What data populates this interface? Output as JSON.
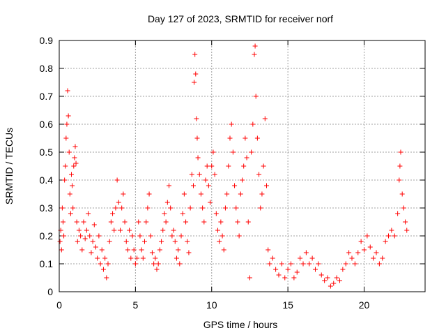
{
  "chart_data": {
    "type": "scatter",
    "title": "Day 127 of 2023, SRMTID for receiver norf",
    "xlabel": "GPS time / hours",
    "ylabel": "SRMTID / TECUs",
    "xlim": [
      0,
      24
    ],
    "ylim": [
      0,
      0.9
    ],
    "x_ticks": [
      0,
      5,
      10,
      15,
      20
    ],
    "y_ticks": [
      0,
      0.1,
      0.2,
      0.3,
      0.4,
      0.5,
      0.6,
      0.7,
      0.8,
      0.9
    ],
    "grid": true,
    "marker": "+",
    "color": "#ff0000",
    "series": [
      {
        "name": "norf",
        "points": [
          [
            0.05,
            0.18
          ],
          [
            0.1,
            0.22
          ],
          [
            0.15,
            0.15
          ],
          [
            0.2,
            0.3
          ],
          [
            0.25,
            0.25
          ],
          [
            0.3,
            0.2
          ],
          [
            0.35,
            0.4
          ],
          [
            0.4,
            0.45
          ],
          [
            0.45,
            0.55
          ],
          [
            0.5,
            0.6
          ],
          [
            0.55,
            0.72
          ],
          [
            0.6,
            0.63
          ],
          [
            0.65,
            0.5
          ],
          [
            0.7,
            0.35
          ],
          [
            0.75,
            0.28
          ],
          [
            0.8,
            0.42
          ],
          [
            0.85,
            0.38
          ],
          [
            0.9,
            0.3
          ],
          [
            0.95,
            0.45
          ],
          [
            1.0,
            0.48
          ],
          [
            1.05,
            0.52
          ],
          [
            1.1,
            0.46
          ],
          [
            1.15,
            0.25
          ],
          [
            1.2,
            0.18
          ],
          [
            1.3,
            0.22
          ],
          [
            1.4,
            0.2
          ],
          [
            1.5,
            0.15
          ],
          [
            1.6,
            0.25
          ],
          [
            1.7,
            0.19
          ],
          [
            1.8,
            0.22
          ],
          [
            1.9,
            0.28
          ],
          [
            2.0,
            0.2
          ],
          [
            2.1,
            0.14
          ],
          [
            2.2,
            0.18
          ],
          [
            2.3,
            0.24
          ],
          [
            2.4,
            0.16
          ],
          [
            2.5,
            0.12
          ],
          [
            2.6,
            0.2
          ],
          [
            2.7,
            0.1
          ],
          [
            2.8,
            0.15
          ],
          [
            2.9,
            0.08
          ],
          [
            3.0,
            0.12
          ],
          [
            3.1,
            0.05
          ],
          [
            3.2,
            0.1
          ],
          [
            3.3,
            0.18
          ],
          [
            3.4,
            0.25
          ],
          [
            3.5,
            0.28
          ],
          [
            3.6,
            0.22
          ],
          [
            3.7,
            0.3
          ],
          [
            3.8,
            0.4
          ],
          [
            3.9,
            0.32
          ],
          [
            4.0,
            0.22
          ],
          [
            4.1,
            0.3
          ],
          [
            4.2,
            0.35
          ],
          [
            4.3,
            0.25
          ],
          [
            4.4,
            0.18
          ],
          [
            4.5,
            0.15
          ],
          [
            4.6,
            0.22
          ],
          [
            4.7,
            0.12
          ],
          [
            4.8,
            0.2
          ],
          [
            4.9,
            0.15
          ],
          [
            5.0,
            0.1
          ],
          [
            5.1,
            0.12
          ],
          [
            5.2,
            0.25
          ],
          [
            5.3,
            0.2
          ],
          [
            5.4,
            0.15
          ],
          [
            5.5,
            0.12
          ],
          [
            5.6,
            0.18
          ],
          [
            5.7,
            0.25
          ],
          [
            5.8,
            0.3
          ],
          [
            5.9,
            0.35
          ],
          [
            6.0,
            0.2
          ],
          [
            6.1,
            0.14
          ],
          [
            6.2,
            0.1
          ],
          [
            6.3,
            0.12
          ],
          [
            6.4,
            0.08
          ],
          [
            6.5,
            0.1
          ],
          [
            6.6,
            0.15
          ],
          [
            6.7,
            0.18
          ],
          [
            6.8,
            0.22
          ],
          [
            6.9,
            0.28
          ],
          [
            7.0,
            0.25
          ],
          [
            7.1,
            0.32
          ],
          [
            7.2,
            0.38
          ],
          [
            7.3,
            0.3
          ],
          [
            7.4,
            0.2
          ],
          [
            7.5,
            0.22
          ],
          [
            7.6,
            0.18
          ],
          [
            7.7,
            0.12
          ],
          [
            7.8,
            0.15
          ],
          [
            7.9,
            0.1
          ],
          [
            8.0,
            0.2
          ],
          [
            8.1,
            0.28
          ],
          [
            8.2,
            0.35
          ],
          [
            8.3,
            0.25
          ],
          [
            8.4,
            0.18
          ],
          [
            8.5,
            0.14
          ],
          [
            8.6,
            0.3
          ],
          [
            8.7,
            0.42
          ],
          [
            8.8,
            0.38
          ],
          [
            8.85,
            0.75
          ],
          [
            8.9,
            0.85
          ],
          [
            8.95,
            0.78
          ],
          [
            9.0,
            0.62
          ],
          [
            9.05,
            0.55
          ],
          [
            9.1,
            0.48
          ],
          [
            9.2,
            0.42
          ],
          [
            9.3,
            0.35
          ],
          [
            9.4,
            0.3
          ],
          [
            9.5,
            0.25
          ],
          [
            9.6,
            0.4
          ],
          [
            9.7,
            0.45
          ],
          [
            9.8,
            0.38
          ],
          [
            9.9,
            0.32
          ],
          [
            10.0,
            0.45
          ],
          [
            10.1,
            0.5
          ],
          [
            10.2,
            0.42
          ],
          [
            10.3,
            0.28
          ],
          [
            10.4,
            0.22
          ],
          [
            10.5,
            0.18
          ],
          [
            10.6,
            0.25
          ],
          [
            10.7,
            0.2
          ],
          [
            10.8,
            0.15
          ],
          [
            10.9,
            0.3
          ],
          [
            11.0,
            0.35
          ],
          [
            11.1,
            0.45
          ],
          [
            11.2,
            0.55
          ],
          [
            11.3,
            0.6
          ],
          [
            11.4,
            0.5
          ],
          [
            11.5,
            0.38
          ],
          [
            11.6,
            0.3
          ],
          [
            11.7,
            0.25
          ],
          [
            11.8,
            0.2
          ],
          [
            11.9,
            0.35
          ],
          [
            12.0,
            0.4
          ],
          [
            12.1,
            0.45
          ],
          [
            12.2,
            0.55
          ],
          [
            12.3,
            0.48
          ],
          [
            12.4,
            0.25
          ],
          [
            12.5,
            0.05
          ],
          [
            12.6,
            0.5
          ],
          [
            12.7,
            0.6
          ],
          [
            12.8,
            0.85
          ],
          [
            12.85,
            0.88
          ],
          [
            12.9,
            0.7
          ],
          [
            13.0,
            0.55
          ],
          [
            13.1,
            0.42
          ],
          [
            13.2,
            0.3
          ],
          [
            13.3,
            0.35
          ],
          [
            13.4,
            0.45
          ],
          [
            13.5,
            0.62
          ],
          [
            13.6,
            0.38
          ],
          [
            13.7,
            0.15
          ],
          [
            13.8,
            0.1
          ],
          [
            14.0,
            0.12
          ],
          [
            14.2,
            0.08
          ],
          [
            14.4,
            0.06
          ],
          [
            14.6,
            0.1
          ],
          [
            14.8,
            0.05
          ],
          [
            15.0,
            0.08
          ],
          [
            15.2,
            0.1
          ],
          [
            15.4,
            0.05
          ],
          [
            15.6,
            0.07
          ],
          [
            15.8,
            0.12
          ],
          [
            16.0,
            0.1
          ],
          [
            16.2,
            0.14
          ],
          [
            16.4,
            0.1
          ],
          [
            16.6,
            0.12
          ],
          [
            16.8,
            0.08
          ],
          [
            17.0,
            0.1
          ],
          [
            17.2,
            0.06
          ],
          [
            17.4,
            0.04
          ],
          [
            17.6,
            0.05
          ],
          [
            17.8,
            0.02
          ],
          [
            18.0,
            0.03
          ],
          [
            18.2,
            0.05
          ],
          [
            18.4,
            0.04
          ],
          [
            18.6,
            0.08
          ],
          [
            18.8,
            0.1
          ],
          [
            19.0,
            0.14
          ],
          [
            19.2,
            0.12
          ],
          [
            19.4,
            0.1
          ],
          [
            19.6,
            0.14
          ],
          [
            19.8,
            0.18
          ],
          [
            20.0,
            0.15
          ],
          [
            20.2,
            0.2
          ],
          [
            20.4,
            0.16
          ],
          [
            20.6,
            0.12
          ],
          [
            20.8,
            0.14
          ],
          [
            21.0,
            0.1
          ],
          [
            21.2,
            0.12
          ],
          [
            21.4,
            0.18
          ],
          [
            21.6,
            0.2
          ],
          [
            21.8,
            0.22
          ],
          [
            22.0,
            0.2
          ],
          [
            22.2,
            0.28
          ],
          [
            22.3,
            0.4
          ],
          [
            22.35,
            0.45
          ],
          [
            22.4,
            0.5
          ],
          [
            22.5,
            0.35
          ],
          [
            22.6,
            0.3
          ],
          [
            22.7,
            0.25
          ],
          [
            22.8,
            0.22
          ]
        ]
      }
    ]
  }
}
